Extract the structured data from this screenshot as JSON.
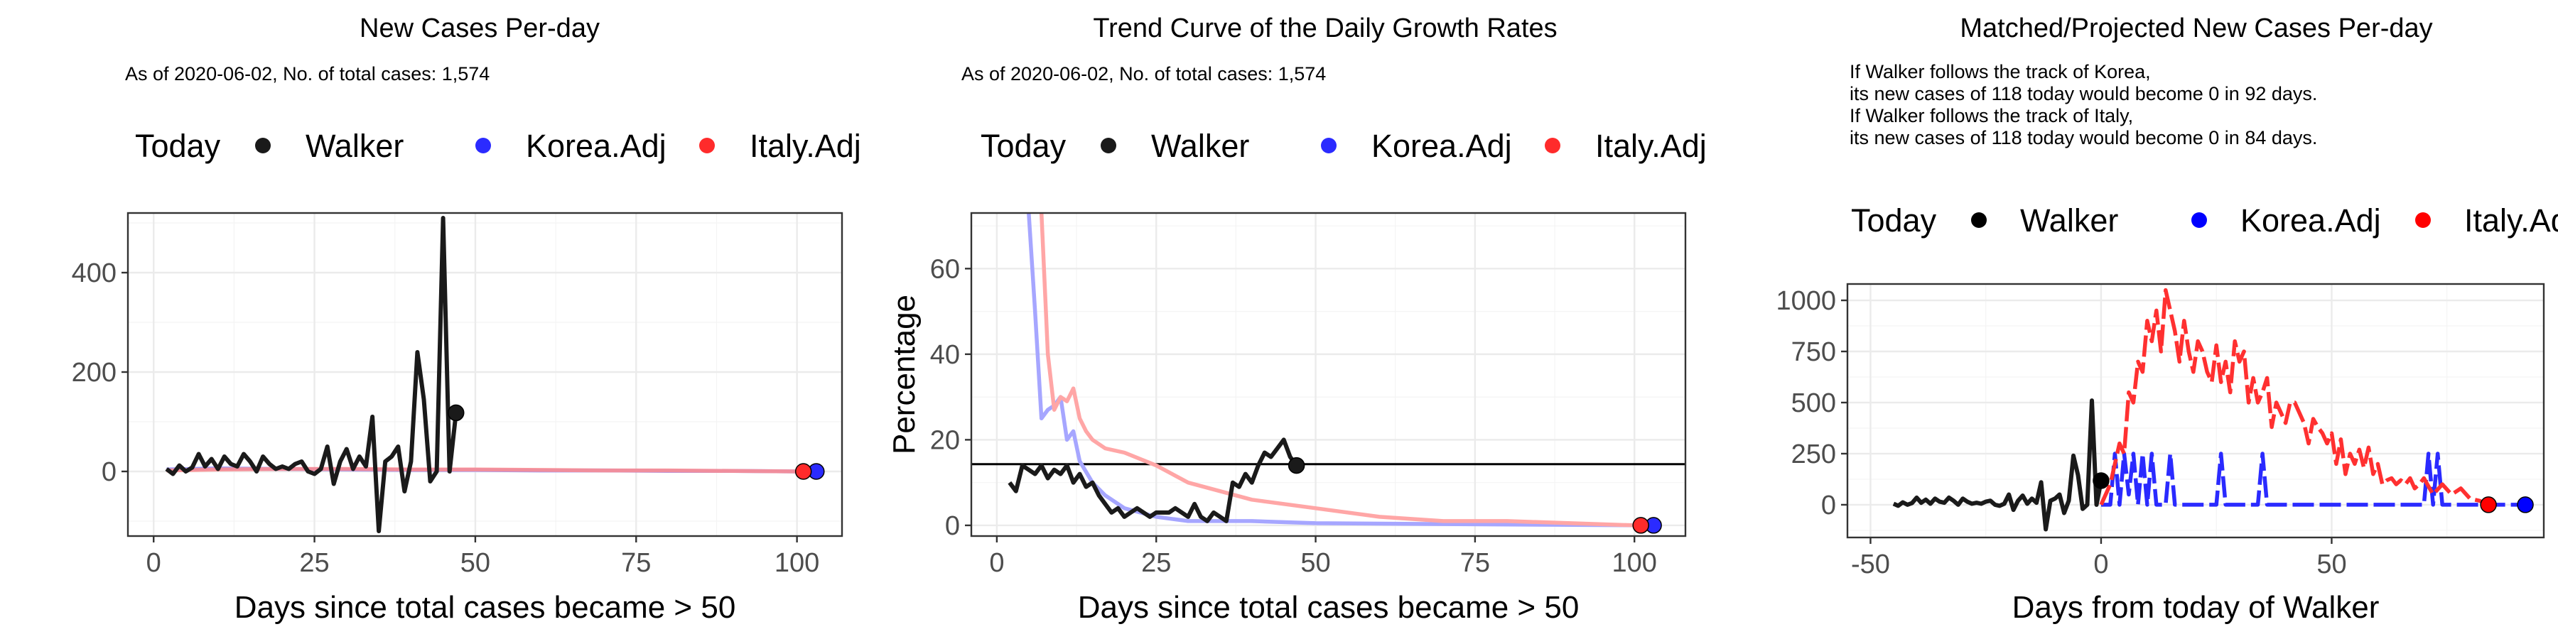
{
  "charts": [
    {
      "title": "New Cases Per-day",
      "subtitle_lines": [
        "As of 2020-06-02, No. of total cases: 1,574"
      ],
      "legend_title": "Today",
      "legend": [
        {
          "label": "Walker",
          "color": "#1a1a1a"
        },
        {
          "label": "Korea.Adj",
          "color": "#2b2bff"
        },
        {
          "label": "Italy.Adj",
          "color": "#ff2b2b"
        }
      ],
      "xlabel": "Days since total cases became > 50",
      "ylabel": "",
      "xticks": [
        "0",
        "25",
        "50",
        "75",
        "100"
      ],
      "yticks": [
        "0",
        "200",
        "400"
      ]
    },
    {
      "title": "Trend Curve of the Daily Growth Rates",
      "subtitle_lines": [
        "As of 2020-06-02, No. of total cases: 1,574"
      ],
      "legend_title": "Today",
      "legend": [
        {
          "label": "Walker",
          "color": "#1a1a1a"
        },
        {
          "label": "Korea.Adj",
          "color": "#2b2bff"
        },
        {
          "label": "Italy.Adj",
          "color": "#ff2b2b"
        }
      ],
      "xlabel": "Days since total cases became > 50",
      "ylabel": "Percentage",
      "xticks": [
        "0",
        "25",
        "50",
        "75",
        "100"
      ],
      "yticks": [
        "0",
        "20",
        "40",
        "60"
      ]
    },
    {
      "title": "Matched/Projected New Cases Per-day",
      "subtitle_lines": [
        "If Walker follows the track of Korea,",
        "its new cases of 118 today would become 0 in 92 days.",
        "If Walker follows the track of Italy,",
        "its new cases of 118 today would become 0 in 84 days."
      ],
      "legend_title": "Today",
      "legend": [
        {
          "label": "Walker",
          "color": "#000000"
        },
        {
          "label": "Korea.Adj",
          "color": "#0000ff"
        },
        {
          "label": "Italy.Adj",
          "color": "#ff0000"
        }
      ],
      "xlabel": "Days from today of Walker",
      "ylabel": "",
      "xticks": [
        "-50",
        "0",
        "50"
      ],
      "yticks": [
        "0",
        "250",
        "500",
        "750",
        "1000"
      ]
    }
  ],
  "chart_data": [
    {
      "type": "line",
      "title": "New Cases Per-day",
      "xlabel": "Days since total cases became > 50",
      "ylabel": "",
      "xlim": [
        -4,
        107
      ],
      "ylim": [
        -130,
        520
      ],
      "grid": true,
      "legend_position": "top",
      "series": [
        {
          "name": "Walker",
          "color": "#1a1a1a",
          "x": [
            2,
            3,
            4,
            5,
            6,
            7,
            8,
            9,
            10,
            11,
            12,
            13,
            14,
            15,
            16,
            17,
            18,
            19,
            20,
            21,
            22,
            23,
            24,
            25,
            26,
            27,
            28,
            29,
            30,
            31,
            32,
            33,
            34,
            35,
            36,
            37,
            38,
            39,
            40,
            41,
            42,
            43,
            44,
            45,
            46,
            47
          ],
          "y": [
            5,
            -5,
            12,
            0,
            8,
            35,
            10,
            25,
            5,
            30,
            15,
            10,
            35,
            20,
            0,
            30,
            15,
            5,
            10,
            5,
            15,
            20,
            0,
            -5,
            5,
            50,
            -25,
            20,
            45,
            5,
            30,
            10,
            110,
            -120,
            20,
            30,
            50,
            -40,
            20,
            240,
            145,
            -20,
            0,
            510,
            0,
            118
          ]
        },
        {
          "name": "Korea.Adj",
          "color": "#8c8cff",
          "x": [
            2,
            10,
            20,
            30,
            40,
            50,
            60,
            70,
            80,
            90,
            100,
            103
          ],
          "y": [
            4,
            6,
            5,
            4,
            3,
            3,
            2,
            2,
            1,
            1,
            0,
            0
          ]
        },
        {
          "name": "Italy.Adj",
          "color": "#ff8c8c",
          "x": [
            2,
            10,
            20,
            30,
            40,
            50,
            60,
            70,
            80,
            90,
            100,
            101
          ],
          "y": [
            2,
            4,
            5,
            5,
            4,
            4,
            3,
            2,
            2,
            1,
            0,
            0
          ]
        }
      ],
      "points": [
        {
          "series": "Walker",
          "x": 47,
          "y": 118
        },
        {
          "series": "Korea.Adj",
          "x": 103,
          "y": 0
        },
        {
          "series": "Italy.Adj",
          "x": 101,
          "y": 0
        }
      ]
    },
    {
      "type": "line",
      "title": "Trend Curve of the Daily Growth Rates",
      "xlabel": "Days since total cases became > 50",
      "ylabel": "Percentage",
      "xlim": [
        -4,
        108
      ],
      "ylim": [
        -2.5,
        73
      ],
      "grid": true,
      "legend_position": "top",
      "hline": 14.3,
      "series": [
        {
          "name": "Walker",
          "color": "#1a1a1a",
          "x": [
            2,
            3,
            4,
            5,
            6,
            7,
            8,
            9,
            10,
            11,
            12,
            13,
            14,
            15,
            16,
            17,
            18,
            19,
            20,
            21,
            22,
            23,
            24,
            25,
            26,
            27,
            28,
            29,
            30,
            31,
            32,
            33,
            34,
            35,
            36,
            37,
            38,
            39,
            40,
            41,
            42,
            43,
            44,
            45,
            46,
            47
          ],
          "y": [
            10,
            8,
            14,
            13,
            12,
            14,
            11,
            13,
            12,
            14,
            10,
            12,
            9,
            10,
            7,
            5,
            3,
            4,
            2,
            3,
            4,
            3,
            2,
            3,
            3,
            3,
            4,
            3,
            2,
            5,
            2,
            1,
            3,
            2,
            1,
            10,
            9,
            12,
            10,
            14,
            17,
            16,
            18,
            20,
            16,
            14
          ]
        },
        {
          "name": "Korea.Adj",
          "color": "#a6a6ff",
          "x": [
            5,
            6,
            7,
            8,
            9,
            10,
            11,
            12,
            13,
            15,
            17,
            20,
            25,
            30,
            40,
            50,
            60,
            70,
            80,
            90,
            100,
            103
          ],
          "y": [
            73,
            50,
            25,
            27,
            28,
            30,
            20,
            22,
            15,
            10,
            7,
            4,
            2,
            1,
            1,
            0.5,
            0.4,
            0.3,
            0.2,
            0.1,
            0,
            0
          ]
        },
        {
          "name": "Italy.Adj",
          "color": "#ffa6a6",
          "x": [
            7,
            8,
            9,
            10,
            11,
            12,
            13,
            14,
            15,
            17,
            20,
            25,
            30,
            40,
            50,
            60,
            70,
            80,
            90,
            100,
            101
          ],
          "y": [
            73,
            40,
            27,
            30,
            29,
            32,
            25,
            22,
            20,
            18,
            17,
            14,
            10,
            6,
            4,
            2,
            1,
            1,
            0.5,
            0,
            0
          ]
        }
      ],
      "points": [
        {
          "series": "Walker",
          "x": 47,
          "y": 14
        },
        {
          "series": "Korea.Adj",
          "x": 103,
          "y": 0
        },
        {
          "series": "Italy.Adj",
          "x": 101,
          "y": 0
        }
      ]
    },
    {
      "type": "line",
      "title": "Matched/Projected New Cases Per-day",
      "xlabel": "Days from today of Walker",
      "ylabel": "",
      "xlim": [
        -55,
        96
      ],
      "ylim": [
        -160,
        1080
      ],
      "grid": true,
      "legend_position": "top",
      "series": [
        {
          "name": "Walker",
          "color": "#1a1a1a",
          "x": [
            -45,
            -44,
            -43,
            -42,
            -41,
            -40,
            -39,
            -38,
            -37,
            -36,
            -35,
            -34,
            -33,
            -32,
            -31,
            -30,
            -29,
            -28,
            -27,
            -26,
            -25,
            -24,
            -23,
            -22,
            -21,
            -20,
            -19,
            -18,
            -17,
            -16,
            -15,
            -14,
            -13,
            -12,
            -11,
            -10,
            -9,
            -8,
            -7,
            -6,
            -5,
            -4,
            -3,
            -2,
            -1,
            0
          ],
          "y": [
            5,
            -5,
            12,
            0,
            8,
            35,
            10,
            25,
            5,
            30,
            15,
            10,
            35,
            20,
            0,
            30,
            15,
            5,
            10,
            5,
            15,
            20,
            0,
            -5,
            5,
            50,
            -25,
            20,
            45,
            5,
            30,
            10,
            110,
            -120,
            20,
            30,
            50,
            -40,
            20,
            240,
            145,
            -20,
            0,
            510,
            0,
            118
          ]
        },
        {
          "name": "Korea.Adj",
          "color": "#2a2aff",
          "dashed": true,
          "x": [
            0,
            2,
            3,
            4,
            5,
            6,
            7,
            8,
            9,
            10,
            11,
            12,
            14,
            15,
            16,
            20,
            25,
            26,
            27,
            28,
            30,
            34,
            35,
            36,
            40,
            45,
            50,
            55,
            60,
            65,
            70,
            71,
            72,
            73,
            74,
            80,
            85,
            92
          ],
          "y": [
            0,
            0,
            250,
            0,
            250,
            50,
            250,
            0,
            250,
            0,
            250,
            0,
            0,
            250,
            0,
            0,
            0,
            250,
            0,
            0,
            0,
            0,
            250,
            0,
            0,
            0,
            0,
            0,
            0,
            0,
            0,
            250,
            0,
            250,
            0,
            0,
            0,
            0
          ]
        },
        {
          "name": "Italy.Adj",
          "color": "#ff3030",
          "dashed": true,
          "x": [
            0,
            2,
            4,
            5,
            6,
            7,
            8,
            9,
            10,
            11,
            12,
            13,
            14,
            15,
            16,
            17,
            18,
            19,
            20,
            21,
            22,
            23,
            24,
            25,
            26,
            27,
            28,
            29,
            30,
            31,
            32,
            33,
            34,
            35,
            36,
            37,
            38,
            39,
            40,
            41,
            42,
            43,
            44,
            45,
            46,
            47,
            48,
            49,
            50,
            51,
            52,
            53,
            54,
            55,
            56,
            57,
            58,
            59,
            60,
            61,
            62,
            63,
            64,
            65,
            66,
            67,
            68,
            69,
            70,
            72,
            74,
            76,
            78,
            80,
            82,
            84
          ],
          "y": [
            0,
            100,
            300,
            250,
            550,
            500,
            700,
            650,
            900,
            800,
            950,
            750,
            1050,
            950,
            850,
            700,
            900,
            750,
            650,
            800,
            750,
            650,
            600,
            780,
            600,
            700,
            550,
            800,
            700,
            750,
            500,
            620,
            500,
            550,
            620,
            380,
            500,
            450,
            400,
            500,
            500,
            450,
            400,
            300,
            420,
            380,
            350,
            300,
            350,
            200,
            320,
            150,
            250,
            200,
            270,
            180,
            280,
            150,
            200,
            100,
            120,
            130,
            100,
            120,
            100,
            130,
            80,
            100,
            130,
            50,
            100,
            50,
            80,
            30,
            20,
            0
          ]
        }
      ],
      "points": [
        {
          "series": "Walker",
          "x": 0,
          "y": 118
        },
        {
          "series": "Korea.Adj",
          "x": 92,
          "y": 0
        },
        {
          "series": "Italy.Adj",
          "x": 84,
          "y": 0
        }
      ]
    }
  ]
}
